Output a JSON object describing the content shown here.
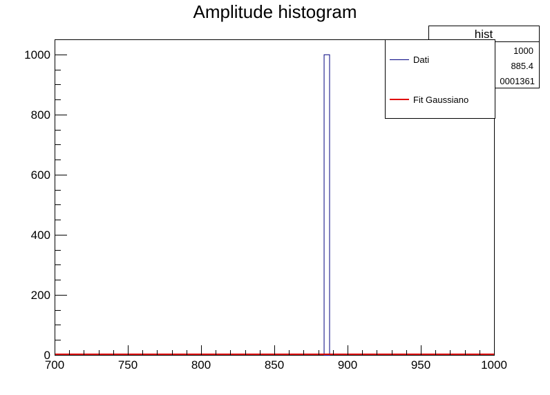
{
  "chart_data": {
    "type": "bar",
    "title": "Amplitude histogram",
    "xlabel": "",
    "ylabel": "",
    "xlim": [
      700,
      1000
    ],
    "ylim": [
      0,
      1050
    ],
    "x_ticks": [
      700,
      750,
      800,
      850,
      900,
      950,
      1000
    ],
    "y_ticks": [
      0,
      200,
      400,
      600,
      800,
      1000
    ],
    "grid": false,
    "series": [
      {
        "name": "Dati",
        "color": "#00007f",
        "bins": [
          {
            "x0": 883.75,
            "x1": 887.5,
            "value": 1000
          }
        ]
      },
      {
        "name": "Fit Gaussiano",
        "color": "#e00000",
        "fit_level": 0
      }
    ],
    "stats_box": {
      "name": "hist",
      "entries": "1000",
      "mean": "885.4",
      "std_dev": "0001361"
    },
    "legend_position": "top-right"
  }
}
